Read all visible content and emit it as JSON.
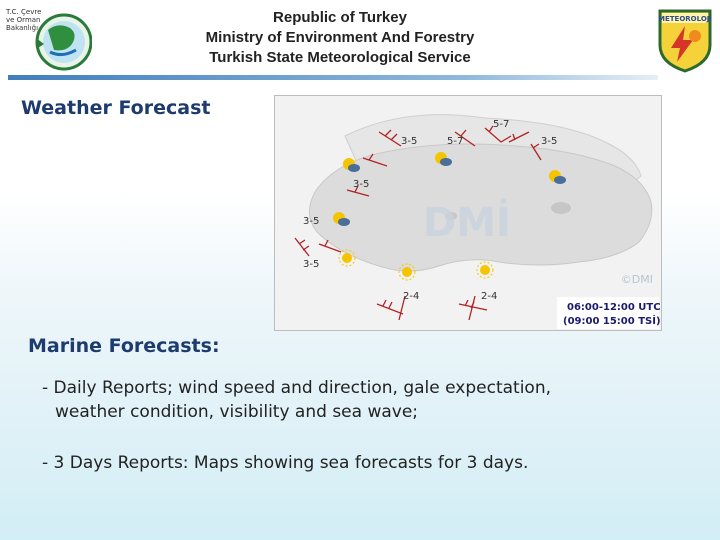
{
  "header": {
    "logo_left_text": "T.C. Çevre ve Orman Bakanlığı",
    "title_lines": [
      "Republic of Turkey",
      "Ministry of Environment And Forestry",
      "Turkish State Meteorological Service"
    ],
    "logo_right_text": "METEOROLOJİ"
  },
  "weather_forecast": {
    "title": "Weather Forecast",
    "map": {
      "watermark": "DMİ",
      "copyright": "©DMI",
      "time_utc": "06:00-12:00 UTC",
      "time_tsi": "(09:00  15:00 TSİ)",
      "wind_labels": [
        "5-7",
        "3-5",
        "5-7",
        "3-5",
        "3-5",
        "3-5",
        "3-5",
        "2-4",
        "2-4"
      ]
    }
  },
  "marine": {
    "title": "Marine Forecasts:",
    "daily_line1": "- Daily Reports; wind speed and direction, gale expectation,",
    "daily_line2": "weather condition, visibility and sea wave;",
    "three_day": "- 3 Days Reports: Maps showing sea forecasts for 3 days."
  },
  "colors": {
    "title_blue": "#1d3b6e",
    "header_line": "#3f7fbd",
    "wind_red": "#b22222",
    "time_text": "#1a1a6e"
  }
}
